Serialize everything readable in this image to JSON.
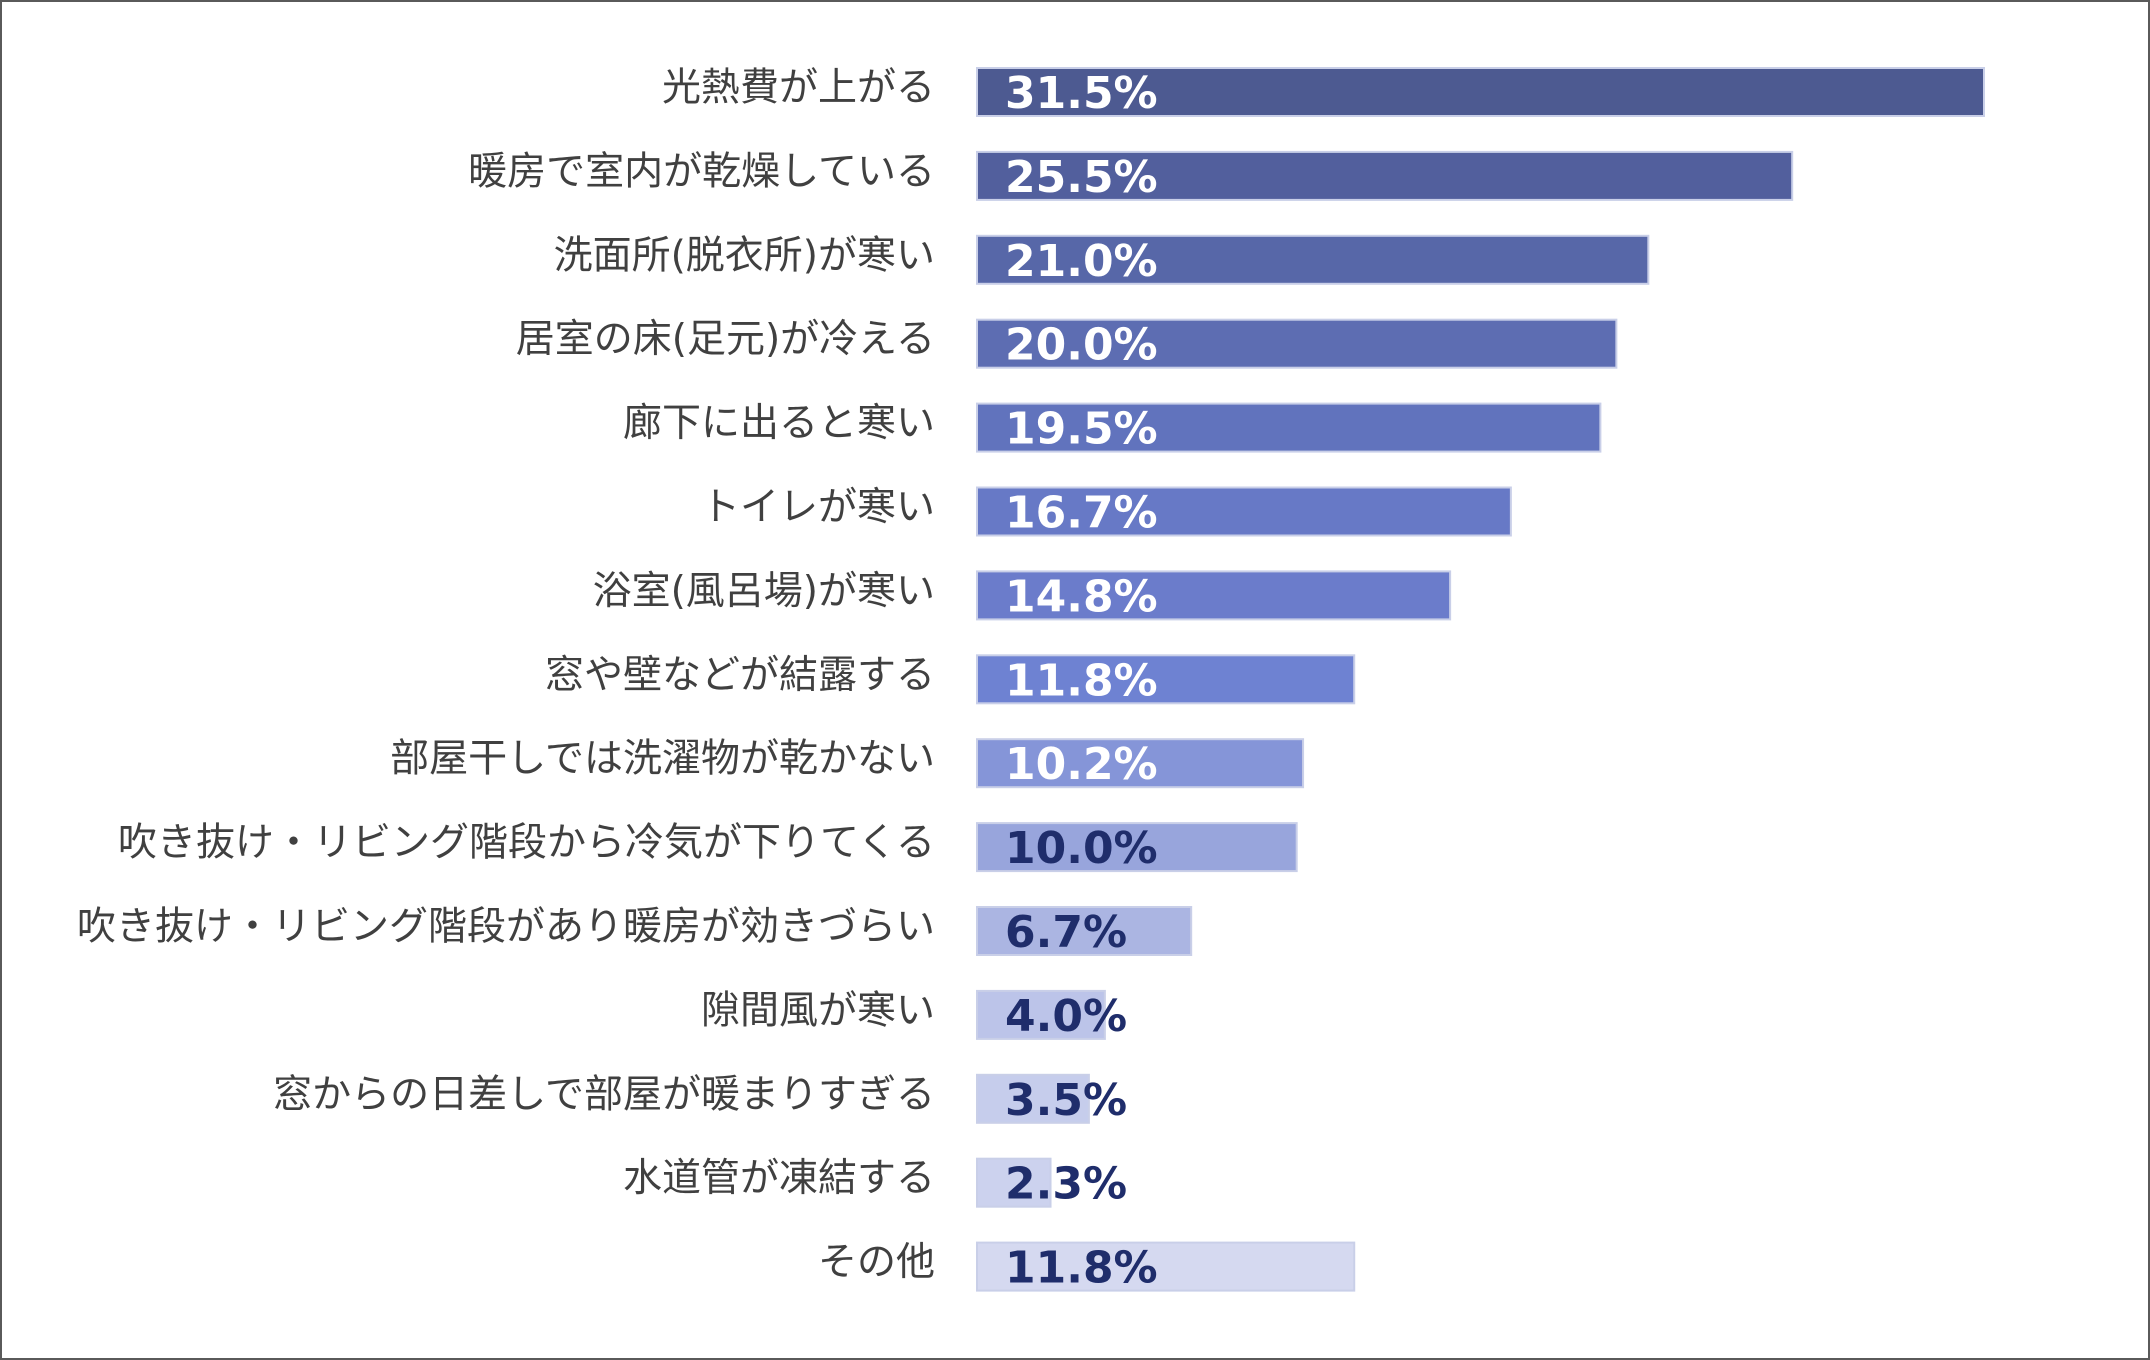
{
  "chart_data": {
    "type": "bar",
    "orientation": "horizontal",
    "title": "",
    "xlabel": "",
    "ylabel": "",
    "xlim": [
      0,
      31.5
    ],
    "grid": false,
    "legend": "none",
    "categories": [
      "光熱費が上がる",
      "暖房で室内が乾燥している",
      "洗面所(脱衣所)が寒い",
      "居室の床(足元)が冷える",
      "廊下に出ると寒い",
      "トイレが寒い",
      "浴室(風呂場)が寒い",
      "窓や壁などが結露する",
      "部屋干しでは洗濯物が乾かない",
      "吹き抜け・リビング階段から冷気が下りてくる",
      "吹き抜け・リビング階段があり暖房が効きづらい",
      "隙間風が寒い",
      "窓からの日差しで部屋が暖まりすぎる",
      "水道管が凍結する",
      "その他"
    ],
    "values": [
      31.5,
      25.5,
      21.0,
      20.0,
      19.5,
      16.7,
      14.8,
      11.8,
      10.2,
      10.0,
      6.7,
      4.0,
      3.5,
      2.3,
      11.8
    ],
    "value_labels": [
      "31.5%",
      "25.5%",
      "21.0%",
      "20.0%",
      "19.5%",
      "16.7%",
      "14.8%",
      "11.8%",
      "10.2%",
      "10.0%",
      "6.7%",
      "4.0%",
      "3.5%",
      "2.3%",
      "11.8%"
    ],
    "bar_colors": [
      "#4d5a91",
      "#525f9d",
      "#5767a8",
      "#5d6db2",
      "#6173bd",
      "#6779c6",
      "#6b7ccb",
      "#6e82d2",
      "#8595d8",
      "#98a5dc",
      "#abb5e2",
      "#bcc4e9",
      "#c6cdec",
      "#ccd2ee",
      "#d5d9f0"
    ],
    "value_label_colors": [
      "#ffffff",
      "#ffffff",
      "#ffffff",
      "#ffffff",
      "#ffffff",
      "#ffffff",
      "#ffffff",
      "#ffffff",
      "#ffffff",
      "#1f2d6b",
      "#1f2d6b",
      "#1f2d6b",
      "#1f2d6b",
      "#1f2d6b",
      "#1f2d6b"
    ]
  }
}
